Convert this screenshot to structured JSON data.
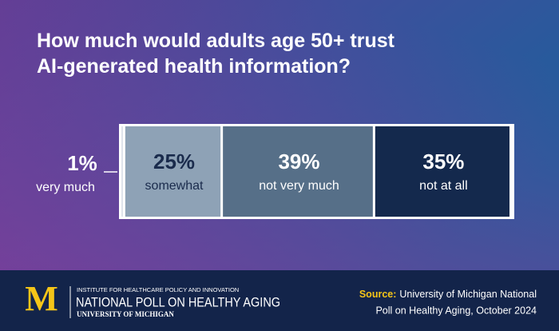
{
  "chart_data": {
    "type": "stacked-bar",
    "title": "How much would adults age 50+ trust AI-generated health information?",
    "xlim": [
      0,
      100
    ],
    "series": [
      {
        "name": "very much",
        "color": "#dde2ea",
        "values": [
          1
        ],
        "value_labels": [
          "1%"
        ]
      },
      {
        "name": "somewhat",
        "color": "#8ea2b6",
        "values": [
          25
        ],
        "value_labels": [
          "25%"
        ]
      },
      {
        "name": "not very much",
        "color": "#566f88",
        "values": [
          39
        ],
        "value_labels": [
          "39%"
        ]
      },
      {
        "name": "not at all",
        "color": "#14294d",
        "values": [
          35
        ],
        "value_labels": [
          "35%"
        ]
      }
    ]
  },
  "footer": {
    "logo": "M",
    "institute": "INSTITUTE FOR HEALTHCARE POLICY AND INNOVATION",
    "poll": "NATIONAL POLL ON HEALTHY AGING",
    "university": "UNIVERSITY OF MICHIGAN",
    "source_label": "Source:",
    "source_line1": "University of Michigan National",
    "source_line2": "Poll on Healthy Aging, October 2024"
  }
}
